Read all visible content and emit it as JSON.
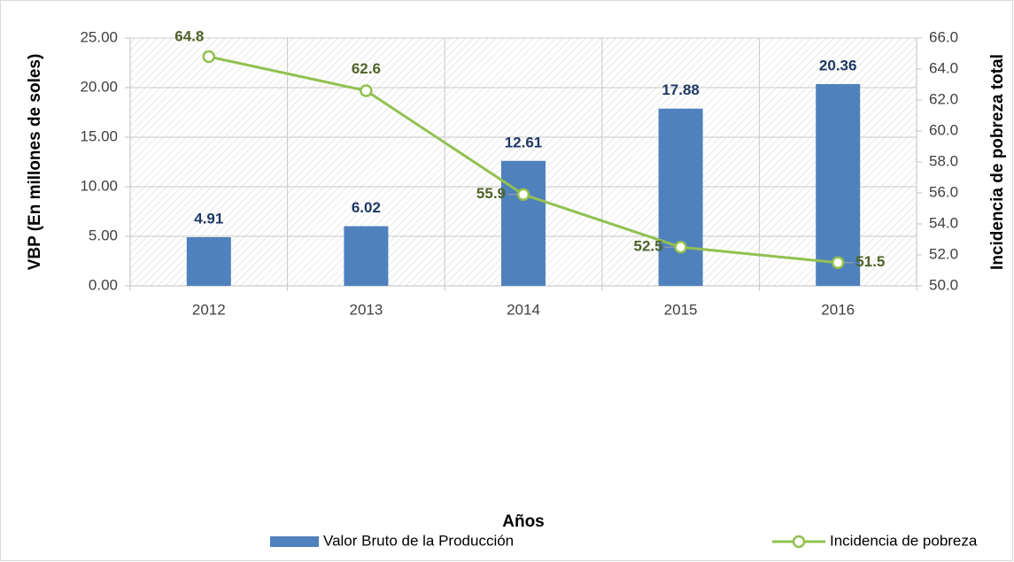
{
  "chart_data": {
    "type": "bar_line",
    "x_label": "Años",
    "y_label": "VBP (En millones de soles)",
    "y2_label": "Incidencia de pobreza total",
    "categories": [
      "2012",
      "2013",
      "2014",
      "2015",
      "2016"
    ],
    "series": [
      {
        "name": "Valor Bruto de la Producción",
        "type": "bar",
        "color": "#4f81bd",
        "label_color": "#1f3864",
        "values": [
          4.91,
          6.02,
          12.61,
          17.88,
          20.36
        ]
      },
      {
        "name": "Incidencia de pobreza",
        "type": "line",
        "axis": "y2",
        "color": "#92c050",
        "label_color": "#4f6228",
        "values": [
          64.8,
          62.6,
          55.9,
          52.5,
          51.5
        ]
      }
    ],
    "ylim": [
      0,
      25
    ],
    "yticks": [
      {
        "value": 0,
        "label": "0.00"
      },
      {
        "value": 5,
        "label": "5.00"
      },
      {
        "value": 10,
        "label": "10.00"
      },
      {
        "value": 15,
        "label": "15.00"
      },
      {
        "value": 20,
        "label": "20.00"
      },
      {
        "value": 25,
        "label": "25.00"
      }
    ],
    "y2lim": [
      50,
      66
    ],
    "y2ticks": [
      {
        "value": 50,
        "label": "50.0"
      },
      {
        "value": 52,
        "label": "52.0"
      },
      {
        "value": 54,
        "label": "54.0"
      },
      {
        "value": 56,
        "label": "56.0"
      },
      {
        "value": 58,
        "label": "58.0"
      },
      {
        "value": 60,
        "label": "60.0"
      },
      {
        "value": 62,
        "label": "62.0"
      },
      {
        "value": 64,
        "label": "64.0"
      },
      {
        "value": 66,
        "label": "66.0"
      }
    ],
    "grid": true
  }
}
